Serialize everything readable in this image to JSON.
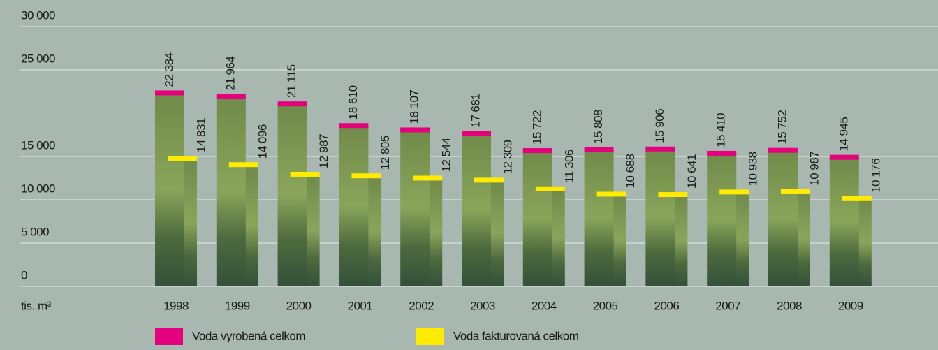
{
  "chart_data": {
    "type": "bar",
    "categories": [
      "1998",
      "1999",
      "2000",
      "2001",
      "2002",
      "2003",
      "2004",
      "2005",
      "2006",
      "2007",
      "2008",
      "2009"
    ],
    "x_label": "tis. m³",
    "series": [
      {
        "name": "Voda vyrobená celkom",
        "color": "#e5007d",
        "values": [
          22384,
          21964,
          21115,
          18610,
          18107,
          17681,
          15722,
          15808,
          15906,
          15410,
          15752,
          14945
        ],
        "value_labels": [
          "22 384",
          "21 964",
          "21 115",
          "18 610",
          "18 107",
          "17 681",
          "15 722",
          "15 808",
          "15 906",
          "15 410",
          "15 752",
          "14 945"
        ]
      },
      {
        "name": "Voda fakturovaná celkom",
        "color": "#ffeb00",
        "values": [
          14831,
          14096,
          12987,
          12805,
          12544,
          12309,
          11306,
          10688,
          10641,
          10938,
          10987,
          10176
        ],
        "value_labels": [
          "14 831",
          "14 096",
          "12 987",
          "12 805",
          "12 544",
          "12 309",
          "11 306",
          "10 688",
          "10 641",
          "10 938",
          "10 987",
          "10 176"
        ]
      }
    ],
    "ylim": [
      0,
      30000
    ],
    "yticks": [
      0,
      {
        "value": 5000,
        "label": "5 000"
      },
      {
        "value": 10000,
        "label": "10 000"
      },
      {
        "value": 15000,
        "label": "15 000"
      },
      {
        "value": 25000,
        "label": "25 000"
      },
      {
        "value": 30000,
        "label": "30 000"
      }
    ],
    "grid": true
  }
}
